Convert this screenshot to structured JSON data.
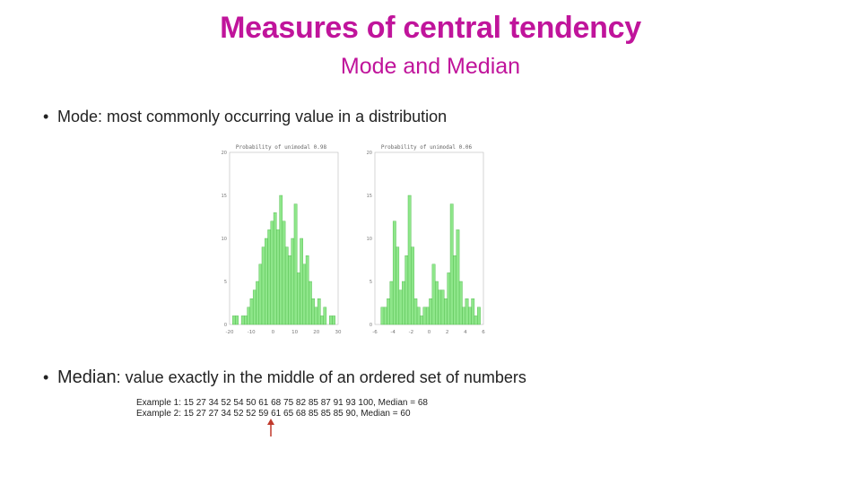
{
  "slide": {
    "title": "Measures of central tendency",
    "subtitle": "Mode and Median",
    "bullets": [
      {
        "symbol": "•",
        "term": "Mode:",
        "text": " most commonly occurring value in a distribution"
      },
      {
        "symbol": "•",
        "term": "Median",
        "text": ": value exactly in the middle of an ordered set of numbers"
      }
    ],
    "examples": [
      "Example 1: 15 27 34 52 54 50 61 68 75 82 85 87 91 93 100, Median = 68",
      "Example 2: 15 27 27 34 52 52 59 61 65 68 85 85 85 90, Median = 60"
    ]
  },
  "colors": {
    "title": "#C0149B",
    "bar_fill": "#8EE68A",
    "bar_stroke": "#4CB848",
    "annotation": "#C0392B"
  },
  "chart_data": [
    {
      "type": "bar",
      "title": "Probability of unimodal 0.98",
      "x_ticks": [
        "-20",
        "-10",
        "0",
        "10",
        "20",
        "30"
      ],
      "y_ticks": [
        "0",
        "5",
        "10",
        "15",
        "20"
      ],
      "xlim": [
        -20,
        30
      ],
      "ylim": [
        0,
        20
      ],
      "values": [
        0,
        1,
        1,
        0,
        1,
        1,
        2,
        3,
        4,
        5,
        7,
        9,
        10,
        11,
        12,
        13,
        11,
        15,
        12,
        9,
        8,
        10,
        14,
        6,
        10,
        7,
        8,
        5,
        3,
        2,
        3,
        1,
        2,
        0,
        1,
        1,
        0
      ]
    },
    {
      "type": "bar",
      "title": "Probability of unimodal 0.06",
      "x_ticks": [
        "-6",
        "-4",
        "-2",
        "0",
        "2",
        "4",
        "6"
      ],
      "y_ticks": [
        "0",
        "5",
        "10",
        "15",
        "20"
      ],
      "xlim": [
        -6,
        6
      ],
      "ylim": [
        0,
        20
      ],
      "values": [
        0,
        0,
        2,
        2,
        3,
        5,
        12,
        9,
        4,
        5,
        8,
        15,
        9,
        3,
        2,
        1,
        2,
        2,
        3,
        7,
        5,
        4,
        4,
        3,
        6,
        14,
        8,
        11,
        5,
        2,
        3,
        2,
        3,
        1,
        2,
        0
      ]
    }
  ]
}
